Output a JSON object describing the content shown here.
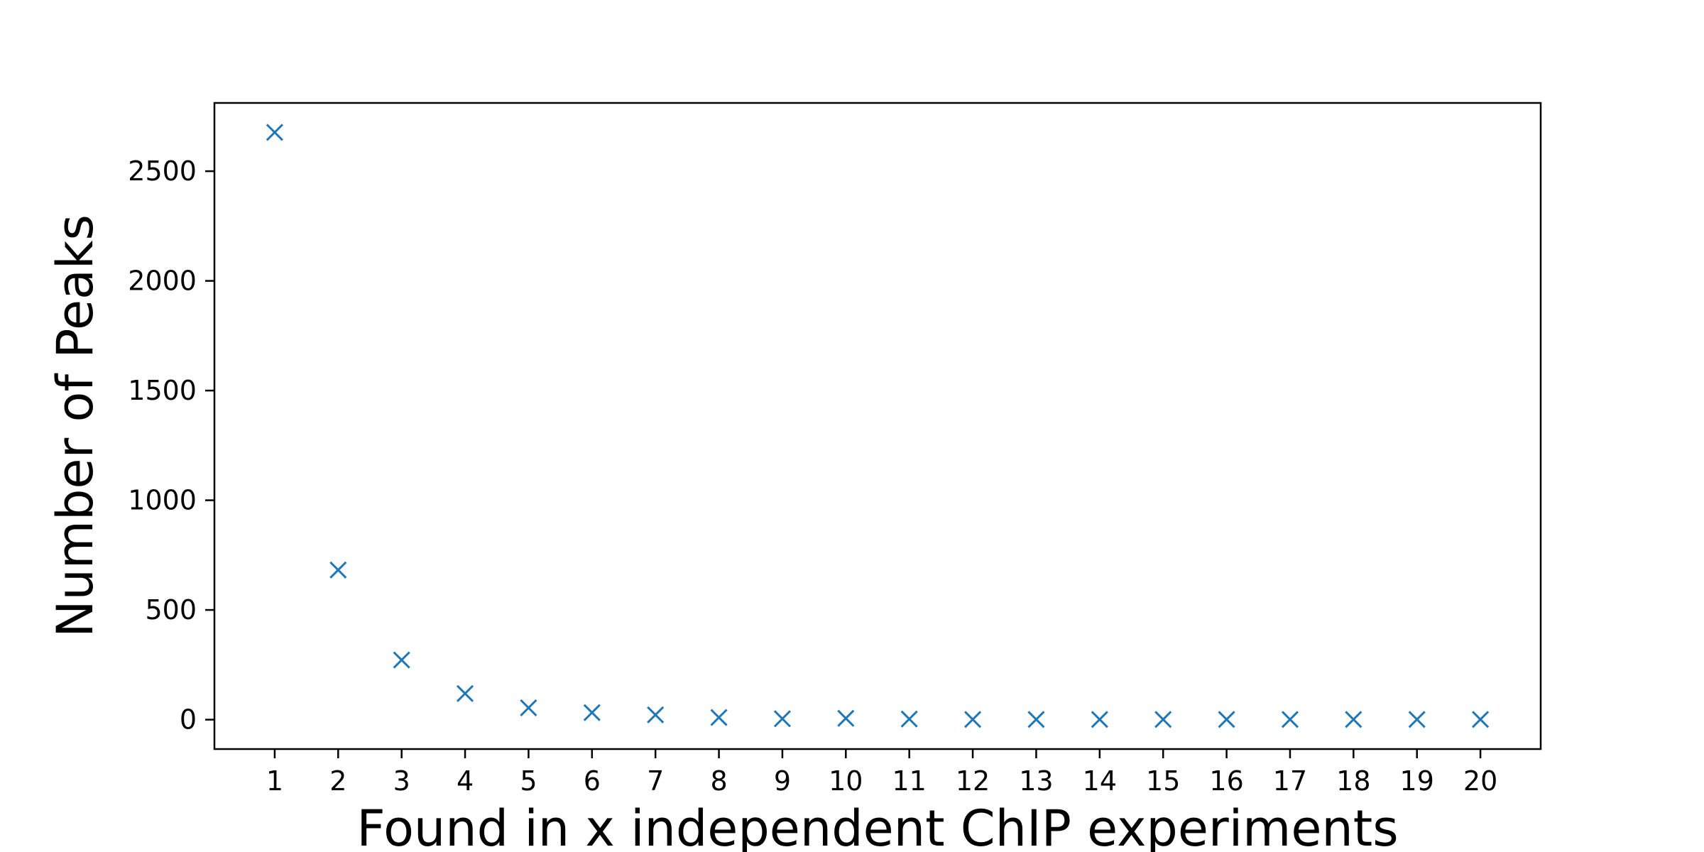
{
  "chart_data": {
    "type": "scatter",
    "title": "",
    "xlabel": "Found in x independent ChIP experiments",
    "ylabel": "Number of Peaks",
    "x": [
      1,
      2,
      3,
      4,
      5,
      6,
      7,
      8,
      9,
      10,
      11,
      12,
      13,
      14,
      15,
      16,
      17,
      18,
      19,
      20
    ],
    "series": [
      {
        "values": [
          2677,
          682,
          272,
          119,
          54,
          32,
          22,
          10,
          4,
          6,
          3,
          1,
          1,
          1,
          1,
          1,
          1,
          1,
          1,
          1
        ],
        "marker": "x",
        "color": "#1f77b4"
      }
    ],
    "xticks": [
      "1",
      "2",
      "3",
      "4",
      "5",
      "6",
      "7",
      "8",
      "9",
      "10",
      "11",
      "12",
      "13",
      "14",
      "15",
      "16",
      "17",
      "18",
      "19",
      "20"
    ],
    "yticks": [
      "0",
      "500",
      "1000",
      "1500",
      "2000",
      "2500"
    ],
    "xlim": [
      0.05,
      20.95
    ],
    "ylim": [
      -134,
      2811
    ],
    "grid": false,
    "legend": "none"
  }
}
